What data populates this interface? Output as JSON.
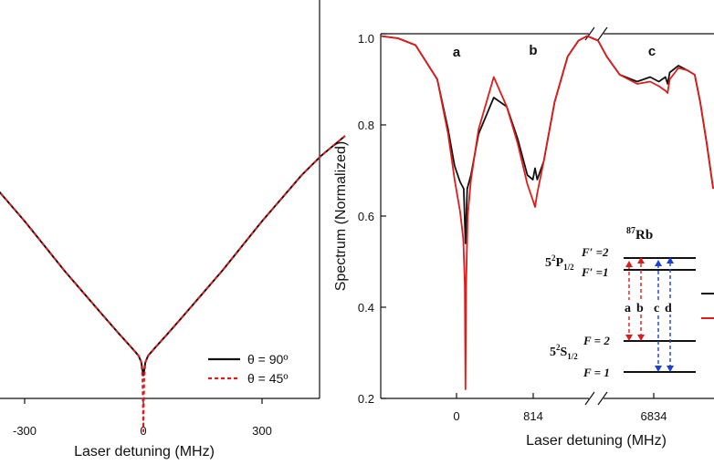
{
  "chart_data": [
    {
      "type": "line",
      "panel": "left",
      "xlabel": "Laser detuning (MHz)",
      "ylabel": "",
      "xlim": [
        -510,
        510
      ],
      "xticks": [
        -300,
        0,
        300
      ],
      "xtick_labels": [
        "-300",
        "0",
        "300"
      ],
      "grid": false,
      "legend_position": "bottom-right",
      "series": [
        {
          "name": "θ = 90º",
          "color": "#111111",
          "style": "solid",
          "x": [
            -510,
            -450,
            -400,
            -350,
            -300,
            -250,
            -200,
            -150,
            -100,
            -60,
            -30,
            -12,
            -5,
            -2,
            0,
            2,
            5,
            12,
            30,
            60,
            100,
            150,
            200,
            250,
            300,
            350,
            400,
            450,
            510
          ],
          "y": [
            0.8,
            0.74,
            0.68,
            0.61,
            0.54,
            0.465,
            0.39,
            0.32,
            0.25,
            0.195,
            0.155,
            0.13,
            0.11,
            0.085,
            0.07,
            0.085,
            0.11,
            0.13,
            0.155,
            0.195,
            0.25,
            0.32,
            0.39,
            0.465,
            0.54,
            0.61,
            0.68,
            0.74,
            0.8
          ]
        },
        {
          "name": "θ = 45º",
          "color": "#e01b1b",
          "style": "dashed",
          "x": [
            -510,
            -450,
            -400,
            -350,
            -300,
            -250,
            -200,
            -150,
            -100,
            -60,
            -30,
            -12,
            -5,
            -2,
            0,
            2,
            5,
            12,
            30,
            60,
            100,
            150,
            200,
            250,
            300,
            350,
            400,
            450,
            510
          ],
          "y": [
            0.8,
            0.74,
            0.68,
            0.61,
            0.54,
            0.465,
            0.39,
            0.32,
            0.25,
            0.195,
            0.155,
            0.13,
            0.11,
            0.06,
            -0.1,
            0.06,
            0.11,
            0.13,
            0.155,
            0.195,
            0.25,
            0.32,
            0.39,
            0.465,
            0.54,
            0.61,
            0.68,
            0.74,
            0.8
          ]
        }
      ]
    },
    {
      "type": "line",
      "panel": "right",
      "xlabel": "Laser detuning (MHz)",
      "ylabel": "Spectrum (Normalized)",
      "ylim": [
        0.2,
        1.0
      ],
      "yticks": [
        "0.2",
        "0.4",
        "0.6",
        "0.8",
        "1.0"
      ],
      "xtick_labels": [
        "0",
        "814",
        "6834"
      ],
      "axis_break": true,
      "grid": false,
      "peak_labels": [
        "a",
        "b",
        "c"
      ],
      "series": [
        {
          "name": "",
          "color": "#111111",
          "u": [
            0,
            0.08,
            0.16,
            0.26,
            0.31,
            0.34,
            0.365,
            0.382,
            0.39,
            0.398,
            0.415,
            0.45,
            0.52,
            0.58,
            0.63,
            0.675,
            0.7,
            0.71,
            0.72,
            0.75,
            0.8,
            0.86,
            0.91,
            0.95,
            1.0,
            1.04,
            1.1,
            1.18,
            1.24,
            1.28,
            1.31,
            1.32,
            1.33,
            1.37,
            1.41,
            1.445,
            1.47,
            1.5,
            1.53
          ],
          "y": [
            0.995,
            0.99,
            0.975,
            0.9,
            0.79,
            0.71,
            0.675,
            0.66,
            0.54,
            0.66,
            0.69,
            0.78,
            0.86,
            0.84,
            0.77,
            0.69,
            0.68,
            0.705,
            0.68,
            0.72,
            0.85,
            0.95,
            0.985,
            0.995,
            0.985,
            0.95,
            0.91,
            0.895,
            0.905,
            0.895,
            0.905,
            0.89,
            0.915,
            0.93,
            0.92,
            0.91,
            0.85,
            0.76,
            0.66
          ]
        },
        {
          "name": "",
          "color": "#e01b1b",
          "u": [
            0,
            0.08,
            0.16,
            0.26,
            0.31,
            0.34,
            0.365,
            0.38,
            0.387,
            0.39,
            0.393,
            0.4,
            0.415,
            0.45,
            0.52,
            0.58,
            0.63,
            0.675,
            0.7,
            0.71,
            0.72,
            0.75,
            0.8,
            0.86,
            0.91,
            0.95,
            1.0,
            1.04,
            1.1,
            1.18,
            1.24,
            1.28,
            1.31,
            1.32,
            1.33,
            1.37,
            1.41,
            1.445,
            1.47,
            1.5,
            1.53
          ],
          "y": [
            0.995,
            0.99,
            0.975,
            0.9,
            0.78,
            0.68,
            0.61,
            0.55,
            0.45,
            0.22,
            0.45,
            0.6,
            0.68,
            0.79,
            0.905,
            0.84,
            0.76,
            0.67,
            0.635,
            0.62,
            0.65,
            0.72,
            0.85,
            0.95,
            0.985,
            0.995,
            0.985,
            0.95,
            0.91,
            0.89,
            0.895,
            0.885,
            0.875,
            0.87,
            0.9,
            0.925,
            0.92,
            0.91,
            0.85,
            0.76,
            0.66
          ]
        }
      ]
    }
  ],
  "inset": {
    "title_sup": "87",
    "title": "Rb",
    "upper_state": {
      "n": "5",
      "sup": "2",
      "term": "P",
      "sub": "1/2"
    },
    "lower_state": {
      "n": "5",
      "sup": "2",
      "term": "S",
      "sub": "1/2"
    },
    "upper_levels": [
      {
        "label": "F′ =2"
      },
      {
        "label": "F′ =1"
      }
    ],
    "lower_levels": [
      {
        "label": "F = 2"
      },
      {
        "label": "F = 1"
      }
    ],
    "transitions": [
      {
        "label": "a",
        "color": "#e01b1b"
      },
      {
        "label": "b",
        "color": "#e01b1b"
      },
      {
        "label": "c",
        "color": "#1a3fd8"
      },
      {
        "label": "d",
        "color": "#1a3fd8"
      }
    ]
  }
}
